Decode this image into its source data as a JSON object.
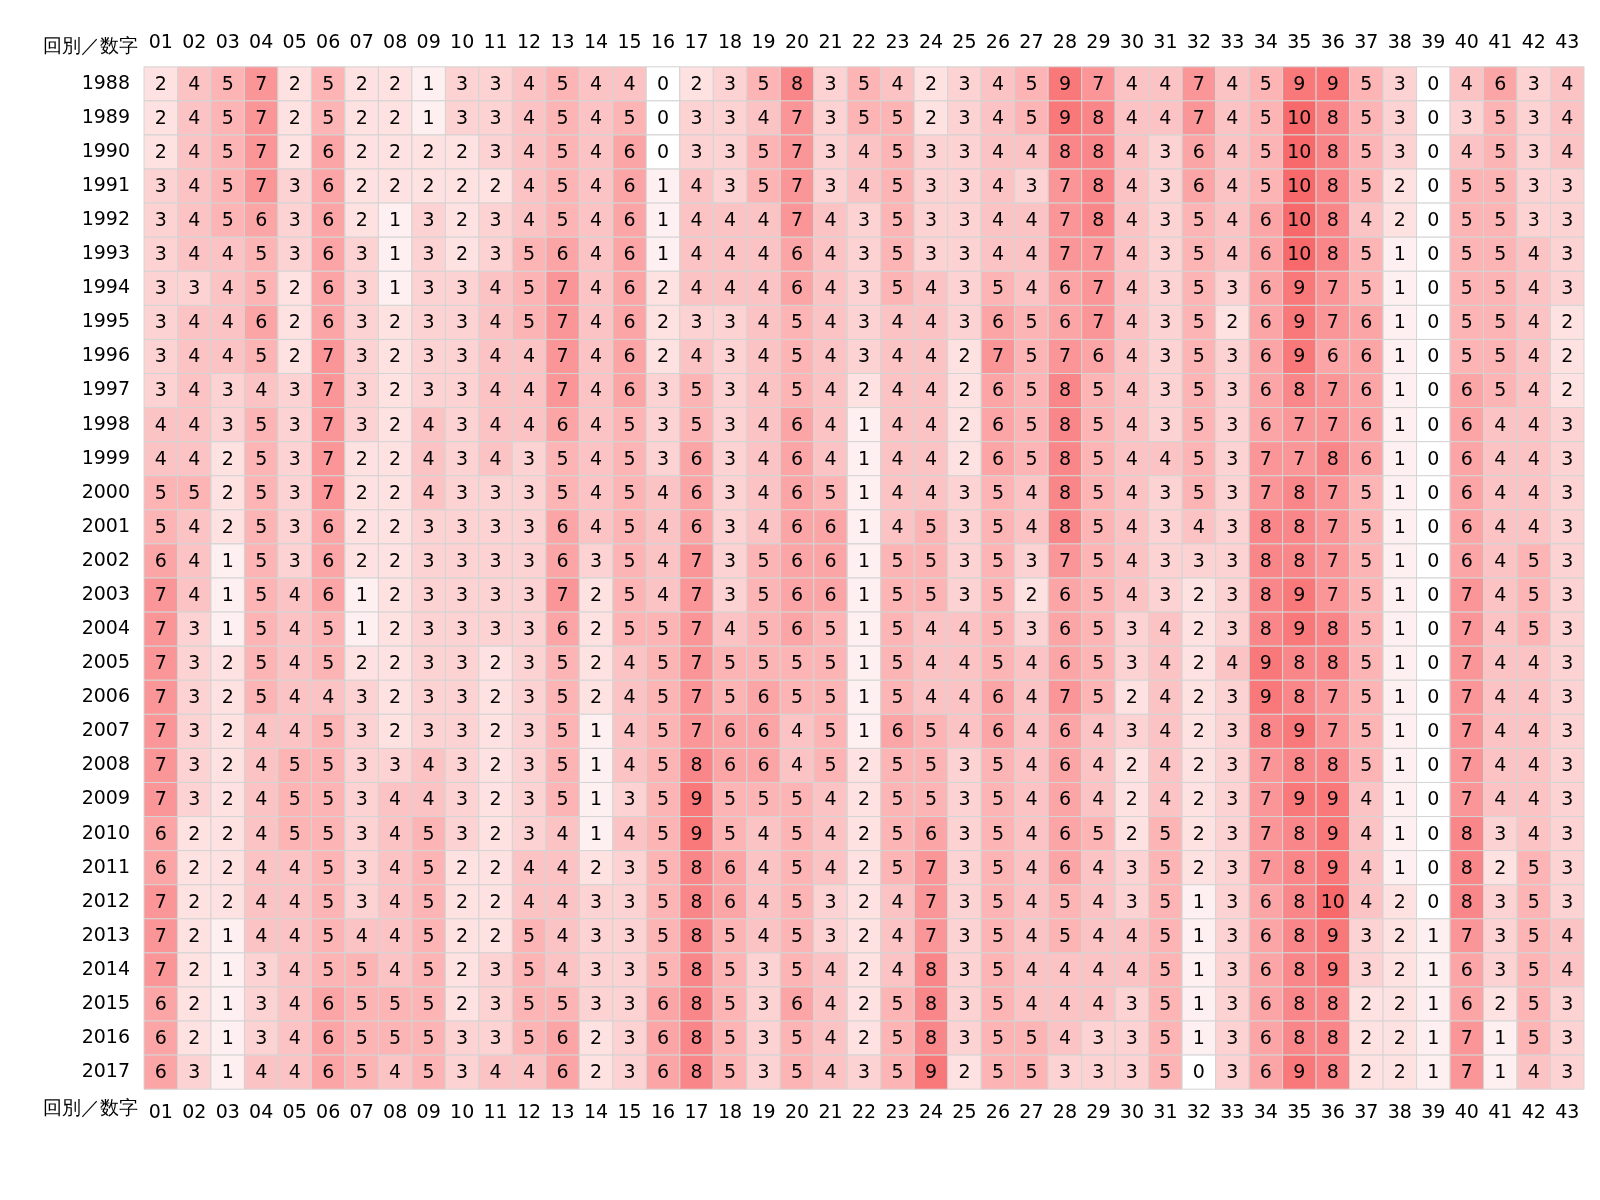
{
  "chart_data": {
    "type": "heatmap",
    "xlabel": "回別／数字",
    "x2label": "回別／数字",
    "data_labels": true,
    "categories": [
      "01",
      "02",
      "03",
      "04",
      "05",
      "06",
      "07",
      "08",
      "09",
      "10",
      "11",
      "12",
      "13",
      "14",
      "15",
      "16",
      "17",
      "18",
      "19",
      "20",
      "21",
      "22",
      "23",
      "24",
      "25",
      "26",
      "27",
      "28",
      "29",
      "30",
      "31",
      "32",
      "33",
      "34",
      "35",
      "36",
      "37",
      "38",
      "39",
      "40",
      "41",
      "42",
      "43"
    ],
    "y_categories": [
      "1988",
      "1989",
      "1990",
      "1991",
      "1992",
      "1993",
      "1994",
      "1995",
      "1996",
      "1997",
      "1998",
      "1999",
      "2000",
      "2001",
      "2002",
      "2003",
      "2004",
      "2005",
      "2006",
      "2007",
      "2008",
      "2009",
      "2010",
      "2011",
      "2012",
      "2013",
      "2014",
      "2015",
      "2016",
      "2017"
    ],
    "cells": [
      [
        2,
        4,
        5,
        7,
        2,
        5,
        2,
        2,
        1,
        3,
        3,
        4,
        5,
        4,
        4,
        0,
        2,
        3,
        5,
        8,
        3,
        5,
        4,
        2,
        3,
        4,
        5,
        9,
        7,
        4,
        4,
        7,
        4,
        5,
        9,
        9,
        5,
        3,
        0,
        4,
        6,
        3,
        4
      ],
      [
        2,
        4,
        5,
        7,
        2,
        5,
        2,
        2,
        1,
        3,
        3,
        4,
        5,
        4,
        5,
        0,
        3,
        3,
        4,
        7,
        3,
        5,
        5,
        2,
        3,
        4,
        5,
        9,
        8,
        4,
        4,
        7,
        4,
        5,
        10,
        8,
        5,
        3,
        0,
        3,
        5,
        3,
        4
      ],
      [
        2,
        4,
        5,
        7,
        2,
        6,
        2,
        2,
        2,
        2,
        3,
        4,
        5,
        4,
        6,
        0,
        3,
        3,
        5,
        7,
        3,
        4,
        5,
        3,
        3,
        4,
        4,
        8,
        8,
        4,
        3,
        6,
        4,
        5,
        10,
        8,
        5,
        3,
        0,
        4,
        5,
        3,
        4
      ],
      [
        3,
        4,
        5,
        7,
        3,
        6,
        2,
        2,
        2,
        2,
        2,
        4,
        5,
        4,
        6,
        1,
        4,
        3,
        5,
        7,
        3,
        4,
        5,
        3,
        3,
        4,
        3,
        7,
        8,
        4,
        3,
        6,
        4,
        5,
        10,
        8,
        5,
        2,
        0,
        5,
        5,
        3,
        3
      ],
      [
        3,
        4,
        5,
        6,
        3,
        6,
        2,
        1,
        3,
        2,
        3,
        4,
        5,
        4,
        6,
        1,
        4,
        4,
        4,
        7,
        4,
        3,
        5,
        3,
        3,
        4,
        4,
        7,
        8,
        4,
        3,
        5,
        4,
        6,
        10,
        8,
        4,
        2,
        0,
        5,
        5,
        3,
        3
      ],
      [
        3,
        4,
        4,
        5,
        3,
        6,
        3,
        1,
        3,
        2,
        3,
        5,
        6,
        4,
        6,
        1,
        4,
        4,
        4,
        6,
        4,
        3,
        5,
        3,
        3,
        4,
        4,
        7,
        7,
        4,
        3,
        5,
        4,
        6,
        10,
        8,
        5,
        1,
        0,
        5,
        5,
        4,
        3
      ],
      [
        3,
        3,
        4,
        5,
        2,
        6,
        3,
        1,
        3,
        3,
        4,
        5,
        7,
        4,
        6,
        2,
        4,
        4,
        4,
        6,
        4,
        3,
        5,
        4,
        3,
        5,
        4,
        6,
        7,
        4,
        3,
        5,
        3,
        6,
        9,
        7,
        5,
        1,
        0,
        5,
        5,
        4,
        3
      ],
      [
        3,
        4,
        4,
        6,
        2,
        6,
        3,
        2,
        3,
        3,
        4,
        5,
        7,
        4,
        6,
        2,
        3,
        3,
        4,
        5,
        4,
        3,
        4,
        4,
        3,
        6,
        5,
        6,
        7,
        4,
        3,
        5,
        2,
        6,
        9,
        7,
        6,
        1,
        0,
        5,
        5,
        4,
        2
      ],
      [
        3,
        4,
        4,
        5,
        2,
        7,
        3,
        2,
        3,
        3,
        4,
        4,
        7,
        4,
        6,
        2,
        4,
        3,
        4,
        5,
        4,
        3,
        4,
        4,
        2,
        7,
        5,
        7,
        6,
        4,
        3,
        5,
        3,
        6,
        9,
        6,
        6,
        1,
        0,
        5,
        5,
        4,
        2
      ],
      [
        3,
        4,
        3,
        4,
        3,
        7,
        3,
        2,
        3,
        3,
        4,
        4,
        7,
        4,
        6,
        3,
        5,
        3,
        4,
        5,
        4,
        2,
        4,
        4,
        2,
        6,
        5,
        8,
        5,
        4,
        3,
        5,
        3,
        6,
        8,
        7,
        6,
        1,
        0,
        6,
        5,
        4,
        2
      ],
      [
        4,
        4,
        3,
        5,
        3,
        7,
        3,
        2,
        4,
        3,
        4,
        4,
        6,
        4,
        5,
        3,
        5,
        3,
        4,
        6,
        4,
        1,
        4,
        4,
        2,
        6,
        5,
        8,
        5,
        4,
        3,
        5,
        3,
        6,
        7,
        7,
        6,
        1,
        0,
        6,
        4,
        4,
        3
      ],
      [
        4,
        4,
        2,
        5,
        3,
        7,
        2,
        2,
        4,
        3,
        4,
        3,
        5,
        4,
        5,
        3,
        6,
        3,
        4,
        6,
        4,
        1,
        4,
        4,
        2,
        6,
        5,
        8,
        5,
        4,
        4,
        5,
        3,
        7,
        7,
        8,
        6,
        1,
        0,
        6,
        4,
        4,
        3
      ],
      [
        5,
        5,
        2,
        5,
        3,
        7,
        2,
        2,
        4,
        3,
        3,
        3,
        5,
        4,
        5,
        4,
        6,
        3,
        4,
        6,
        5,
        1,
        4,
        4,
        3,
        5,
        4,
        8,
        5,
        4,
        3,
        5,
        3,
        7,
        8,
        7,
        5,
        1,
        0,
        6,
        4,
        4,
        3
      ],
      [
        5,
        4,
        2,
        5,
        3,
        6,
        2,
        2,
        3,
        3,
        3,
        3,
        6,
        4,
        5,
        4,
        6,
        3,
        4,
        6,
        6,
        1,
        4,
        5,
        3,
        5,
        4,
        8,
        5,
        4,
        3,
        4,
        3,
        8,
        8,
        7,
        5,
        1,
        0,
        6,
        4,
        4,
        3
      ],
      [
        6,
        4,
        1,
        5,
        3,
        6,
        2,
        2,
        3,
        3,
        3,
        3,
        6,
        3,
        5,
        4,
        7,
        3,
        5,
        6,
        6,
        1,
        5,
        5,
        3,
        5,
        3,
        7,
        5,
        4,
        3,
        3,
        3,
        8,
        8,
        7,
        5,
        1,
        0,
        6,
        4,
        5,
        3
      ],
      [
        7,
        4,
        1,
        5,
        4,
        6,
        1,
        2,
        3,
        3,
        3,
        3,
        7,
        2,
        5,
        4,
        7,
        3,
        5,
        6,
        6,
        1,
        5,
        5,
        3,
        5,
        2,
        6,
        5,
        4,
        3,
        2,
        3,
        8,
        9,
        7,
        5,
        1,
        0,
        7,
        4,
        5,
        3
      ],
      [
        7,
        3,
        1,
        5,
        4,
        5,
        1,
        2,
        3,
        3,
        3,
        3,
        6,
        2,
        5,
        5,
        7,
        4,
        5,
        6,
        5,
        1,
        5,
        4,
        4,
        5,
        3,
        6,
        5,
        3,
        4,
        2,
        3,
        8,
        9,
        8,
        5,
        1,
        0,
        7,
        4,
        5,
        3
      ],
      [
        7,
        3,
        2,
        5,
        4,
        5,
        2,
        2,
        3,
        3,
        2,
        3,
        5,
        2,
        4,
        5,
        7,
        5,
        5,
        5,
        5,
        1,
        5,
        4,
        4,
        5,
        4,
        6,
        5,
        3,
        4,
        2,
        4,
        9,
        8,
        8,
        5,
        1,
        0,
        7,
        4,
        4,
        3
      ],
      [
        7,
        3,
        2,
        5,
        4,
        4,
        3,
        2,
        3,
        3,
        2,
        3,
        5,
        2,
        4,
        5,
        7,
        5,
        6,
        5,
        5,
        1,
        5,
        4,
        4,
        6,
        4,
        7,
        5,
        2,
        4,
        2,
        3,
        9,
        8,
        7,
        5,
        1,
        0,
        7,
        4,
        4,
        3
      ],
      [
        7,
        3,
        2,
        4,
        4,
        5,
        3,
        2,
        3,
        3,
        2,
        3,
        5,
        1,
        4,
        5,
        7,
        6,
        6,
        4,
        5,
        1,
        6,
        5,
        4,
        6,
        4,
        6,
        4,
        3,
        4,
        2,
        3,
        8,
        9,
        7,
        5,
        1,
        0,
        7,
        4,
        4,
        3
      ],
      [
        7,
        3,
        2,
        4,
        5,
        5,
        3,
        3,
        4,
        3,
        2,
        3,
        5,
        1,
        4,
        5,
        8,
        6,
        6,
        4,
        5,
        2,
        5,
        5,
        3,
        5,
        4,
        6,
        4,
        2,
        4,
        2,
        3,
        7,
        8,
        8,
        5,
        1,
        0,
        7,
        4,
        4,
        3
      ],
      [
        7,
        3,
        2,
        4,
        5,
        5,
        3,
        4,
        4,
        3,
        2,
        3,
        5,
        1,
        3,
        5,
        9,
        5,
        5,
        5,
        4,
        2,
        5,
        5,
        3,
        5,
        4,
        6,
        4,
        2,
        4,
        2,
        3,
        7,
        9,
        9,
        4,
        1,
        0,
        7,
        4,
        4,
        3
      ],
      [
        6,
        2,
        2,
        4,
        5,
        5,
        3,
        4,
        5,
        3,
        2,
        3,
        4,
        1,
        4,
        5,
        9,
        5,
        4,
        5,
        4,
        2,
        5,
        6,
        3,
        5,
        4,
        6,
        5,
        2,
        5,
        2,
        3,
        7,
        8,
        9,
        4,
        1,
        0,
        8,
        3,
        4,
        3
      ],
      [
        6,
        2,
        2,
        4,
        4,
        5,
        3,
        4,
        5,
        2,
        2,
        4,
        4,
        2,
        3,
        5,
        8,
        6,
        4,
        5,
        4,
        2,
        5,
        7,
        3,
        5,
        4,
        6,
        4,
        3,
        5,
        2,
        3,
        7,
        8,
        9,
        4,
        1,
        0,
        8,
        2,
        5,
        3
      ],
      [
        7,
        2,
        2,
        4,
        4,
        5,
        3,
        4,
        5,
        2,
        2,
        4,
        4,
        3,
        3,
        5,
        8,
        6,
        4,
        5,
        3,
        2,
        4,
        7,
        3,
        5,
        4,
        5,
        4,
        3,
        5,
        1,
        3,
        6,
        8,
        10,
        4,
        2,
        0,
        8,
        3,
        5,
        3
      ],
      [
        7,
        2,
        1,
        4,
        4,
        5,
        4,
        4,
        5,
        2,
        2,
        5,
        4,
        3,
        3,
        5,
        8,
        5,
        4,
        5,
        3,
        2,
        4,
        7,
        3,
        5,
        4,
        5,
        4,
        4,
        5,
        1,
        3,
        6,
        8,
        9,
        3,
        2,
        1,
        7,
        3,
        5,
        4
      ],
      [
        7,
        2,
        1,
        3,
        4,
        5,
        5,
        4,
        5,
        2,
        3,
        5,
        4,
        3,
        3,
        5,
        8,
        5,
        3,
        5,
        4,
        2,
        4,
        8,
        3,
        5,
        4,
        4,
        4,
        4,
        5,
        1,
        3,
        6,
        8,
        9,
        3,
        2,
        1,
        6,
        3,
        5,
        4
      ],
      [
        6,
        2,
        1,
        3,
        4,
        6,
        5,
        5,
        5,
        2,
        3,
        5,
        5,
        3,
        3,
        6,
        8,
        5,
        3,
        6,
        4,
        2,
        5,
        8,
        3,
        5,
        4,
        4,
        4,
        3,
        5,
        1,
        3,
        6,
        8,
        8,
        2,
        2,
        1,
        6,
        2,
        5,
        3
      ],
      [
        6,
        2,
        1,
        3,
        4,
        6,
        5,
        5,
        5,
        3,
        3,
        5,
        6,
        2,
        3,
        6,
        8,
        5,
        3,
        5,
        4,
        2,
        5,
        8,
        3,
        5,
        5,
        4,
        3,
        3,
        5,
        1,
        3,
        6,
        8,
        8,
        2,
        2,
        1,
        7,
        1,
        5,
        3
      ],
      [
        6,
        3,
        1,
        4,
        4,
        6,
        5,
        4,
        5,
        3,
        4,
        4,
        6,
        2,
        3,
        6,
        8,
        5,
        3,
        5,
        4,
        3,
        5,
        9,
        2,
        5,
        5,
        3,
        3,
        3,
        5,
        0,
        3,
        6,
        9,
        8,
        2,
        2,
        1,
        7,
        1,
        4,
        3
      ]
    ]
  }
}
